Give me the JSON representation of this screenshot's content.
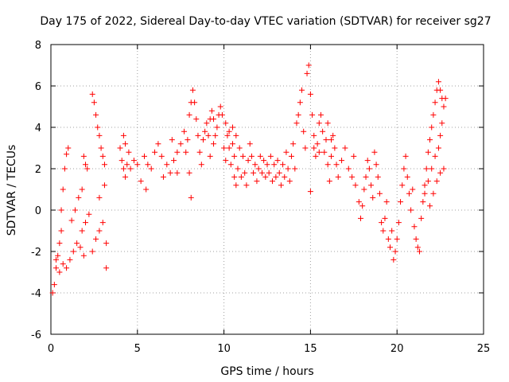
{
  "chart_data": {
    "type": "scatter",
    "title": "Day 175 of 2022, Sidereal Day-to-day VTEC variation (SDTVAR) for receiver sg27",
    "xlabel": "GPS time / hours",
    "ylabel": "SDTVAR / TECUs",
    "xlim": [
      0,
      25
    ],
    "ylim": [
      -6,
      8
    ],
    "x_ticks": [
      0,
      5,
      10,
      15,
      20,
      25
    ],
    "y_ticks": [
      -6,
      -4,
      -2,
      0,
      2,
      4,
      6,
      8
    ],
    "x_tick_labels": [
      "0",
      "5",
      "10",
      "15",
      "20",
      "25"
    ],
    "y_tick_labels": [
      "-6",
      "-4",
      "-2",
      "0",
      "2",
      "4",
      "6",
      "8"
    ],
    "grid": true,
    "marker": "+",
    "marker_color": "#ff0000",
    "series": [
      {
        "name": "sg27",
        "points": [
          [
            0.1,
            -4.0
          ],
          [
            0.2,
            -3.6
          ],
          [
            0.3,
            -2.8
          ],
          [
            0.4,
            -2.2
          ],
          [
            0.5,
            -1.6
          ],
          [
            0.6,
            -1.0
          ],
          [
            0.3,
            -2.4
          ],
          [
            0.5,
            -3.0
          ],
          [
            0.7,
            -2.6
          ],
          [
            0.9,
            -2.8
          ],
          [
            1.1,
            -2.4
          ],
          [
            1.3,
            -2.0
          ],
          [
            1.5,
            -1.6
          ],
          [
            1.7,
            -1.8
          ],
          [
            1.9,
            -2.2
          ],
          [
            0.6,
            0.0
          ],
          [
            0.7,
            1.0
          ],
          [
            0.8,
            2.0
          ],
          [
            0.9,
            2.7
          ],
          [
            1.0,
            3.0
          ],
          [
            1.2,
            -0.5
          ],
          [
            1.4,
            0.0
          ],
          [
            1.6,
            0.6
          ],
          [
            1.8,
            1.0
          ],
          [
            1.8,
            -1.0
          ],
          [
            2.0,
            -0.6
          ],
          [
            2.2,
            -0.2
          ],
          [
            1.9,
            2.6
          ],
          [
            2.0,
            2.2
          ],
          [
            2.1,
            2.0
          ],
          [
            2.4,
            5.6
          ],
          [
            2.5,
            5.2
          ],
          [
            2.6,
            4.6
          ],
          [
            2.7,
            4.0
          ],
          [
            2.8,
            3.6
          ],
          [
            2.9,
            3.0
          ],
          [
            3.0,
            2.6
          ],
          [
            3.1,
            2.2
          ],
          [
            2.4,
            -2.0
          ],
          [
            2.6,
            -1.4
          ],
          [
            2.8,
            -1.0
          ],
          [
            3.0,
            -0.6
          ],
          [
            3.2,
            -1.6
          ],
          [
            3.2,
            -2.8
          ],
          [
            3.1,
            1.2
          ],
          [
            2.8,
            0.6
          ],
          [
            4.0,
            3.0
          ],
          [
            4.1,
            2.4
          ],
          [
            4.2,
            2.0
          ],
          [
            4.3,
            1.6
          ],
          [
            4.4,
            2.2
          ],
          [
            4.5,
            2.8
          ],
          [
            4.2,
            3.6
          ],
          [
            4.3,
            3.2
          ],
          [
            4.6,
            2.0
          ],
          [
            4.8,
            2.4
          ],
          [
            5.0,
            2.2
          ],
          [
            5.2,
            1.4
          ],
          [
            5.4,
            2.6
          ],
          [
            5.6,
            2.2
          ],
          [
            5.5,
            1.0
          ],
          [
            5.8,
            2.0
          ],
          [
            6.0,
            2.8
          ],
          [
            6.2,
            3.2
          ],
          [
            6.4,
            2.6
          ],
          [
            6.5,
            1.6
          ],
          [
            6.7,
            2.2
          ],
          [
            6.9,
            1.8
          ],
          [
            7.1,
            2.4
          ],
          [
            7.3,
            1.8
          ],
          [
            7.0,
            3.4
          ],
          [
            7.3,
            2.8
          ],
          [
            7.5,
            3.2
          ],
          [
            7.7,
            3.8
          ],
          [
            7.8,
            2.8
          ],
          [
            7.9,
            3.4
          ],
          [
            8.0,
            1.8
          ],
          [
            8.1,
            0.6
          ],
          [
            8.0,
            4.6
          ],
          [
            8.1,
            5.2
          ],
          [
            8.2,
            5.8
          ],
          [
            8.3,
            5.2
          ],
          [
            8.4,
            4.4
          ],
          [
            8.5,
            3.6
          ],
          [
            8.6,
            2.8
          ],
          [
            8.7,
            2.2
          ],
          [
            8.8,
            3.4
          ],
          [
            8.9,
            3.8
          ],
          [
            9.0,
            4.2
          ],
          [
            9.1,
            3.6
          ],
          [
            9.2,
            4.4
          ],
          [
            9.3,
            4.8
          ],
          [
            9.4,
            4.4
          ],
          [
            9.5,
            3.6
          ],
          [
            9.6,
            4.0
          ],
          [
            9.7,
            4.6
          ],
          [
            9.8,
            5.0
          ],
          [
            9.9,
            4.6
          ],
          [
            9.4,
            3.2
          ],
          [
            9.2,
            2.6
          ],
          [
            10.0,
            3.0
          ],
          [
            10.1,
            2.4
          ],
          [
            10.2,
            3.6
          ],
          [
            10.3,
            3.0
          ],
          [
            10.4,
            2.2
          ],
          [
            10.5,
            3.2
          ],
          [
            10.6,
            1.6
          ],
          [
            10.7,
            1.2
          ],
          [
            10.1,
            4.2
          ],
          [
            10.3,
            3.8
          ],
          [
            10.5,
            4.0
          ],
          [
            10.7,
            3.6
          ],
          [
            10.9,
            3.0
          ],
          [
            10.6,
            2.6
          ],
          [
            10.8,
            2.0
          ],
          [
            11.0,
            1.6
          ],
          [
            11.1,
            2.6
          ],
          [
            11.2,
            1.8
          ],
          [
            11.3,
            1.2
          ],
          [
            11.4,
            2.4
          ],
          [
            11.5,
            3.2
          ],
          [
            11.6,
            2.6
          ],
          [
            11.7,
            1.8
          ],
          [
            11.8,
            2.2
          ],
          [
            11.9,
            1.4
          ],
          [
            12.0,
            2.0
          ],
          [
            12.1,
            2.6
          ],
          [
            12.2,
            1.8
          ],
          [
            12.3,
            2.4
          ],
          [
            12.4,
            1.6
          ],
          [
            12.5,
            2.2
          ],
          [
            12.6,
            1.8
          ],
          [
            12.7,
            2.6
          ],
          [
            12.8,
            1.4
          ],
          [
            12.9,
            2.2
          ],
          [
            13.0,
            1.6
          ],
          [
            13.1,
            2.4
          ],
          [
            13.2,
            1.8
          ],
          [
            13.3,
            1.2
          ],
          [
            13.4,
            2.2
          ],
          [
            13.5,
            1.6
          ],
          [
            13.6,
            2.8
          ],
          [
            13.7,
            2.0
          ],
          [
            13.8,
            1.4
          ],
          [
            13.9,
            2.6
          ],
          [
            14.0,
            3.2
          ],
          [
            14.1,
            2.0
          ],
          [
            14.2,
            4.2
          ],
          [
            14.3,
            4.6
          ],
          [
            14.4,
            5.2
          ],
          [
            14.5,
            5.8
          ],
          [
            14.6,
            3.8
          ],
          [
            14.7,
            3.0
          ],
          [
            14.8,
            6.6
          ],
          [
            14.9,
            7.0
          ],
          [
            15.0,
            5.6
          ],
          [
            15.1,
            4.6
          ],
          [
            15.2,
            3.6
          ],
          [
            15.3,
            2.6
          ],
          [
            15.4,
            3.2
          ],
          [
            15.5,
            4.2
          ],
          [
            15.6,
            4.6
          ],
          [
            15.7,
            3.8
          ],
          [
            15.8,
            2.8
          ],
          [
            15.9,
            3.4
          ],
          [
            16.0,
            2.2
          ],
          [
            16.1,
            1.4
          ],
          [
            16.2,
            2.6
          ],
          [
            16.3,
            3.6
          ],
          [
            16.4,
            3.0
          ],
          [
            16.5,
            2.2
          ],
          [
            15.0,
            0.9
          ],
          [
            15.2,
            3.0
          ],
          [
            15.5,
            2.8
          ],
          [
            16.0,
            4.2
          ],
          [
            16.2,
            3.4
          ],
          [
            16.6,
            1.6
          ],
          [
            16.8,
            2.4
          ],
          [
            17.0,
            3.0
          ],
          [
            17.2,
            2.0
          ],
          [
            17.4,
            1.6
          ],
          [
            17.5,
            2.6
          ],
          [
            17.6,
            1.2
          ],
          [
            17.8,
            0.4
          ],
          [
            17.9,
            -0.4
          ],
          [
            18.0,
            0.2
          ],
          [
            18.1,
            1.0
          ],
          [
            18.2,
            1.6
          ],
          [
            18.3,
            2.4
          ],
          [
            18.4,
            2.0
          ],
          [
            18.5,
            1.2
          ],
          [
            18.6,
            0.6
          ],
          [
            18.7,
            2.8
          ],
          [
            18.8,
            2.2
          ],
          [
            18.9,
            1.6
          ],
          [
            19.0,
            0.8
          ],
          [
            19.1,
            -0.6
          ],
          [
            19.2,
            -1.0
          ],
          [
            19.3,
            -0.4
          ],
          [
            19.4,
            0.4
          ],
          [
            19.5,
            -1.4
          ],
          [
            19.6,
            -1.8
          ],
          [
            19.7,
            -1.0
          ],
          [
            19.8,
            -2.4
          ],
          [
            19.9,
            -2.0
          ],
          [
            20.0,
            -1.4
          ],
          [
            20.1,
            -0.6
          ],
          [
            20.2,
            0.4
          ],
          [
            20.3,
            1.2
          ],
          [
            20.4,
            2.0
          ],
          [
            20.5,
            2.6
          ],
          [
            20.6,
            1.6
          ],
          [
            20.7,
            0.8
          ],
          [
            20.8,
            0.0
          ],
          [
            20.9,
            1.0
          ],
          [
            21.0,
            -0.8
          ],
          [
            21.1,
            -1.4
          ],
          [
            21.2,
            -1.8
          ],
          [
            21.3,
            -2.0
          ],
          [
            21.4,
            -0.4
          ],
          [
            21.5,
            0.4
          ],
          [
            21.6,
            1.2
          ],
          [
            21.7,
            2.0
          ],
          [
            21.8,
            2.8
          ],
          [
            21.9,
            3.4
          ],
          [
            22.0,
            4.0
          ],
          [
            22.1,
            4.6
          ],
          [
            22.2,
            5.2
          ],
          [
            22.3,
            5.8
          ],
          [
            22.4,
            6.2
          ],
          [
            22.5,
            5.8
          ],
          [
            22.6,
            5.4
          ],
          [
            22.7,
            5.0
          ],
          [
            22.8,
            5.4
          ],
          [
            22.6,
            4.2
          ],
          [
            22.5,
            3.6
          ],
          [
            22.4,
            3.0
          ],
          [
            22.2,
            2.6
          ],
          [
            22.0,
            2.0
          ],
          [
            21.8,
            1.4
          ],
          [
            21.6,
            0.8
          ],
          [
            21.9,
            0.2
          ],
          [
            22.1,
            0.8
          ],
          [
            22.3,
            1.4
          ],
          [
            22.5,
            1.8
          ],
          [
            22.7,
            2.0
          ]
        ]
      }
    ]
  }
}
